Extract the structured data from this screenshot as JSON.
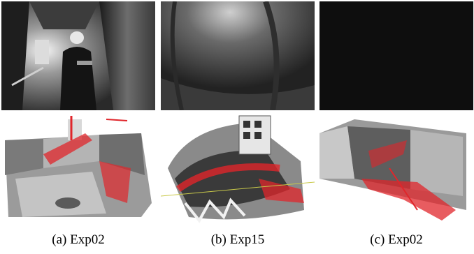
{
  "figure": {
    "panels": [
      {
        "caption": "(a) Exp02",
        "camera_view": "camera-image-hallway-worker",
        "map_view": "point-cloud-map-building-floor"
      },
      {
        "caption": "(b) Exp15",
        "camera_view": "camera-image-dim-hallway",
        "map_view": "point-cloud-map-stairwell"
      },
      {
        "caption": "(c) Exp02",
        "camera_view": "camera-image-dark",
        "map_view": "point-cloud-map-room"
      }
    ],
    "colors": {
      "trajectory_red": "#e0262b",
      "point_gray": "#8a8a8a",
      "dark_frame": "#0e0e0e"
    }
  }
}
